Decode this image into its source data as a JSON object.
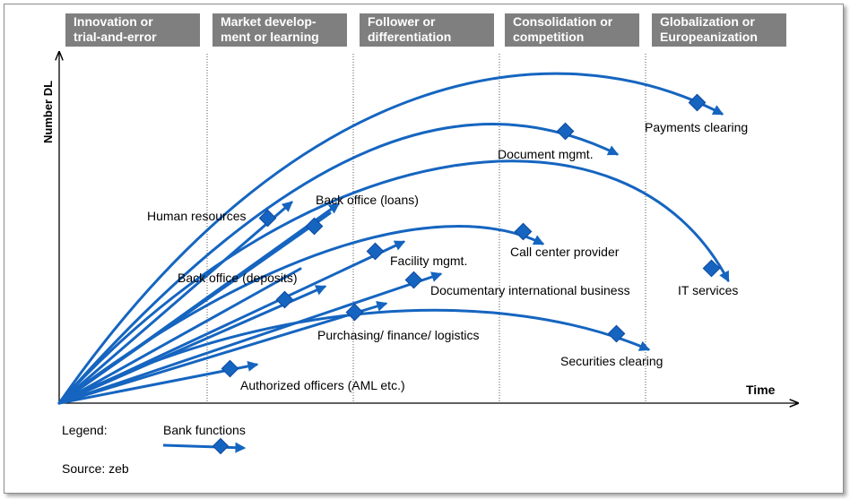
{
  "phases": [
    "Innovation or\ntrial-and-error",
    "Market develop-\nment or learning",
    "Follower or\ndifferentiation",
    "Consolidation or\ncompetition",
    "Globalization or\nEuropeanization"
  ],
  "axes": {
    "y_label": "Number DL",
    "x_label": "Time"
  },
  "functions": [
    "Payments clearing",
    "Document mgmt.",
    "Back office (loans)",
    "Human resources",
    "IT services",
    "Call center provider",
    "Facility mgmt.",
    "Back office (deposits)",
    "Documentary international business",
    "Purchasing/ finance/ logistics",
    "Securities clearing",
    "Authorized officers (AML etc.)"
  ],
  "legend": {
    "title": "Legend:",
    "item": "Bank functions"
  },
  "source": "Source: zeb",
  "colors": {
    "curve": "#1565c0",
    "phase_bg": "#7f7f7f",
    "axis": "#000000",
    "divider": "#555555"
  }
}
